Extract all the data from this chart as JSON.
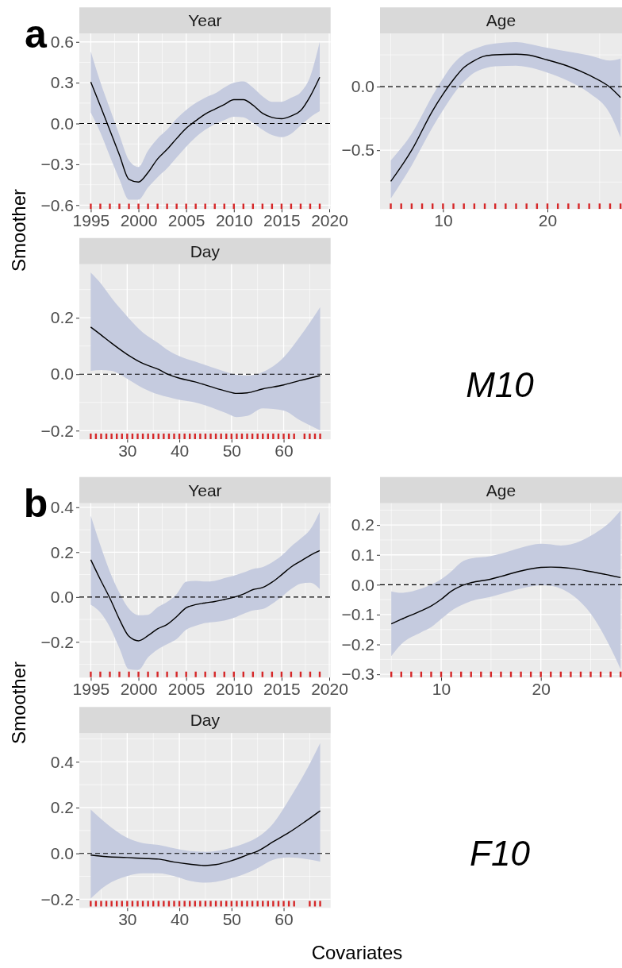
{
  "chart_data": [
    {
      "type": "line",
      "title": "Year",
      "ylabel": "Smoother",
      "annotations": [
        "a"
      ],
      "xlim": [
        1993.8,
        2020.14
      ],
      "ylim": [
        -0.629,
        0.661
      ],
      "xticks": [
        1995,
        2000,
        2005,
        2010,
        2015,
        2020
      ],
      "yticks": [
        {
          "value": -0.6,
          "label": "−0.6"
        },
        {
          "value": -0.3,
          "label": "−0.3"
        },
        {
          "value": 0,
          "label": "0.0"
        },
        {
          "value": 0.3,
          "label": "0.3"
        },
        {
          "value": 0.6,
          "label": "0.6"
        }
      ],
      "grid": true,
      "ref_lines": [
        {
          "axis": "y",
          "value": 0,
          "color": "#000000",
          "line_style": "dashed"
        }
      ],
      "series": [
        {
          "type": "line",
          "color": "#000000",
          "line_style": "solid",
          "x": [
            1995,
            1996,
            1997,
            1998,
            1999,
            2000,
            2001,
            2002,
            2003,
            2004,
            2005,
            2006,
            2007,
            2008,
            2009,
            2010,
            2011,
            2012,
            2013,
            2014,
            2015,
            2016,
            2017,
            2018,
            2019
          ],
          "values": [
            0.305,
            0.13,
            -0.05,
            -0.23,
            -0.41,
            -0.43,
            -0.36,
            -0.26,
            -0.19,
            -0.11,
            -0.035,
            0.02,
            0.07,
            0.105,
            0.14,
            0.175,
            0.175,
            0.135,
            0.075,
            0.045,
            0.035,
            0.055,
            0.095,
            0.2,
            0.34
          ],
          "upper": [
            0.53,
            0.305,
            0.11,
            -0.085,
            -0.27,
            -0.32,
            -0.2,
            -0.11,
            -0.045,
            0.035,
            0.1,
            0.15,
            0.19,
            0.22,
            0.265,
            0.3,
            0.31,
            0.265,
            0.2,
            0.16,
            0.16,
            0.19,
            0.23,
            0.345,
            0.6
          ],
          "lower": [
            0.08,
            -0.065,
            -0.24,
            -0.41,
            -0.56,
            -0.56,
            -0.47,
            -0.395,
            -0.33,
            -0.25,
            -0.17,
            -0.1,
            -0.045,
            -0.005,
            0.025,
            0.05,
            0.045,
            0.005,
            -0.045,
            -0.085,
            -0.1,
            -0.075,
            -0.015,
            0.045,
            0.09
          ]
        },
        {
          "type": "scatter",
          "color": "#d62728",
          "x": [
            1995,
            1996,
            1997,
            1998,
            1999,
            2000,
            2001,
            2002,
            2003,
            2004,
            2005,
            2006,
            2007,
            2008,
            2009,
            2010,
            2011,
            2012,
            2013,
            2014,
            2015,
            2016,
            2017,
            2018,
            2019
          ],
          "values": [
            -0.61,
            -0.61,
            -0.61,
            -0.61,
            -0.61,
            -0.61,
            -0.61,
            -0.61,
            -0.61,
            -0.61,
            -0.61,
            -0.61,
            -0.61,
            -0.61,
            -0.61,
            -0.61,
            -0.61,
            -0.61,
            -0.61,
            -0.61,
            -0.61,
            -0.61,
            -0.61,
            -0.61,
            -0.61
          ]
        }
      ]
    },
    {
      "type": "line",
      "title": "Age",
      "xlim": [
        3.97,
        27.14
      ],
      "ylim": [
        -0.9625,
        0.417
      ],
      "xticks": [
        10,
        20
      ],
      "yticks": [
        {
          "value": -0.5,
          "label": "−0.5"
        },
        {
          "value": 0,
          "label": "0.0"
        }
      ],
      "grid": true,
      "ref_lines": [
        {
          "axis": "y",
          "value": 0,
          "color": "#000000",
          "line_style": "dashed"
        }
      ],
      "series": [
        {
          "type": "line",
          "color": "#000000",
          "line_style": "solid",
          "x": [
            5,
            7,
            9,
            10,
            11,
            12,
            13,
            14,
            15,
            17,
            18,
            20,
            22,
            24,
            26,
            27
          ],
          "values": [
            -0.745,
            -0.5,
            -0.19,
            -0.06,
            0.055,
            0.15,
            0.205,
            0.24,
            0.25,
            0.255,
            0.25,
            0.21,
            0.16,
            0.09,
            -0.006,
            -0.085
          ],
          "upper": [
            -0.58,
            -0.37,
            -0.07,
            0.065,
            0.18,
            0.255,
            0.295,
            0.325,
            0.34,
            0.35,
            0.34,
            0.305,
            0.275,
            0.245,
            0.205,
            0.22
          ],
          "lower": [
            -0.88,
            -0.62,
            -0.32,
            -0.185,
            -0.06,
            0.04,
            0.11,
            0.145,
            0.16,
            0.165,
            0.155,
            0.11,
            0.045,
            -0.05,
            -0.215,
            -0.4
          ]
        },
        {
          "type": "scatter",
          "color": "#d62728",
          "x": [
            5,
            6,
            7,
            8,
            9,
            10,
            11,
            12,
            13,
            14,
            15,
            16,
            17,
            18,
            19,
            20,
            21,
            22,
            23,
            24,
            25,
            26,
            27
          ],
          "values": [
            -0.94,
            -0.94,
            -0.94,
            -0.94,
            -0.94,
            -0.94,
            -0.94,
            -0.94,
            -0.94,
            -0.94,
            -0.94,
            -0.94,
            -0.94,
            -0.94,
            -0.94,
            -0.94,
            -0.94,
            -0.94,
            -0.94,
            -0.94,
            -0.94,
            -0.94,
            -0.94
          ]
        }
      ]
    },
    {
      "type": "line",
      "title": "Day",
      "annotations": [
        "M10"
      ],
      "xlim": [
        20.82,
        69.0
      ],
      "ylim": [
        -0.231,
        0.39
      ],
      "xticks": [
        30,
        40,
        50,
        60
      ],
      "yticks": [
        {
          "value": -0.2,
          "label": "−0.2"
        },
        {
          "value": 0,
          "label": "0.0"
        },
        {
          "value": 0.2,
          "label": "0.2"
        }
      ],
      "grid": true,
      "ref_lines": [
        {
          "axis": "y",
          "value": 0,
          "color": "#000000",
          "line_style": "dashed"
        }
      ],
      "series": [
        {
          "type": "line",
          "color": "#000000",
          "line_style": "solid",
          "x": [
            23,
            25,
            27,
            30,
            33,
            36,
            38,
            40,
            43,
            46,
            49,
            51,
            53,
            56,
            60,
            63,
            67
          ],
          "values": [
            0.167,
            0.139,
            0.11,
            0.07,
            0.038,
            0.017,
            -0.002,
            -0.014,
            -0.027,
            -0.044,
            -0.06,
            -0.068,
            -0.066,
            -0.052,
            -0.038,
            -0.023,
            -0.005
          ],
          "upper": [
            0.36,
            0.32,
            0.27,
            0.205,
            0.148,
            0.11,
            0.083,
            0.064,
            0.045,
            0.026,
            0.008,
            -0.002,
            -0.005,
            0.008,
            0.06,
            0.13,
            0.238
          ],
          "lower": [
            0.012,
            0.015,
            0.012,
            -0.016,
            -0.049,
            -0.072,
            -0.082,
            -0.091,
            -0.1,
            -0.117,
            -0.138,
            -0.152,
            -0.148,
            -0.121,
            -0.129,
            -0.162,
            -0.199
          ]
        },
        {
          "type": "scatter",
          "color": "#d62728",
          "x": [
            23,
            24,
            25,
            26,
            27,
            28,
            29,
            30,
            31,
            32,
            33,
            34,
            35,
            36,
            37,
            38,
            39,
            40,
            41,
            42,
            43,
            44,
            45,
            46,
            47,
            48,
            49,
            50,
            51,
            52,
            53,
            54,
            55,
            56,
            57,
            58,
            59,
            60,
            61,
            62,
            64,
            65,
            66,
            67
          ],
          "values": [
            -0.22,
            -0.22,
            -0.22,
            -0.22,
            -0.22,
            -0.22,
            -0.22,
            -0.22,
            -0.22,
            -0.22,
            -0.22,
            -0.22,
            -0.22,
            -0.22,
            -0.22,
            -0.22,
            -0.22,
            -0.22,
            -0.22,
            -0.22,
            -0.22,
            -0.22,
            -0.22,
            -0.22,
            -0.22,
            -0.22,
            -0.22,
            -0.22,
            -0.22,
            -0.22,
            -0.22,
            -0.22,
            -0.22,
            -0.22,
            -0.22,
            -0.22,
            -0.22,
            -0.22,
            -0.22,
            -0.22,
            -0.22,
            -0.22,
            -0.22,
            -0.22
          ]
        }
      ]
    },
    {
      "type": "line",
      "title": "Year",
      "ylabel": "Smoother",
      "annotations": [
        "b"
      ],
      "xlim": [
        1993.8,
        2020.14
      ],
      "ylim": [
        -0.359,
        0.418
      ],
      "xticks": [
        1995,
        2000,
        2005,
        2010,
        2015,
        2020
      ],
      "yticks": [
        {
          "value": -0.2,
          "label": "−0.2"
        },
        {
          "value": 0,
          "label": "0.0"
        },
        {
          "value": 0.2,
          "label": "0.2"
        },
        {
          "value": 0.4,
          "label": "0.4"
        }
      ],
      "grid": true,
      "ref_lines": [
        {
          "axis": "y",
          "value": 0,
          "color": "#000000",
          "line_style": "dashed"
        }
      ],
      "series": [
        {
          "type": "line",
          "color": "#000000",
          "line_style": "solid",
          "x": [
            1995,
            1996,
            1997,
            1998,
            1999,
            2000,
            2001,
            2002,
            2003,
            2004,
            2005,
            2006,
            2007,
            2008,
            2009,
            2010,
            2011,
            2012,
            2013,
            2014,
            2015,
            2016,
            2017,
            2018,
            2019
          ],
          "values": [
            0.166,
            0.078,
            -0.005,
            -0.099,
            -0.175,
            -0.195,
            -0.172,
            -0.142,
            -0.122,
            -0.087,
            -0.048,
            -0.034,
            -0.026,
            -0.02,
            -0.011,
            -0.001,
            0.013,
            0.033,
            0.042,
            0.066,
            0.099,
            0.134,
            0.16,
            0.186,
            0.207
          ],
          "upper": [
            0.362,
            0.231,
            0.113,
            0.019,
            -0.052,
            -0.081,
            -0.079,
            -0.046,
            -0.022,
            0.013,
            0.068,
            0.072,
            0.069,
            0.072,
            0.084,
            0.095,
            0.109,
            0.125,
            0.133,
            0.154,
            0.184,
            0.225,
            0.26,
            0.301,
            0.38
          ],
          "lower": [
            -0.034,
            -0.069,
            -0.134,
            -0.228,
            -0.322,
            -0.325,
            -0.269,
            -0.234,
            -0.21,
            -0.187,
            -0.146,
            -0.128,
            -0.116,
            -0.111,
            -0.105,
            -0.093,
            -0.075,
            -0.06,
            -0.054,
            -0.031,
            0.001,
            0.036,
            0.06,
            0.064,
            0.036
          ]
        },
        {
          "type": "scatter",
          "color": "#d62728",
          "x": [
            1995,
            1996,
            1997,
            1998,
            1999,
            2000,
            2001,
            2002,
            2003,
            2004,
            2005,
            2006,
            2007,
            2008,
            2009,
            2010,
            2011,
            2012,
            2013,
            2014,
            2015,
            2016,
            2017,
            2018,
            2019
          ],
          "values": [
            -0.345,
            -0.345,
            -0.345,
            -0.345,
            -0.345,
            -0.345,
            -0.345,
            -0.345,
            -0.345,
            -0.345,
            -0.345,
            -0.345,
            -0.345,
            -0.345,
            -0.345,
            -0.345,
            -0.345,
            -0.345,
            -0.345,
            -0.345,
            -0.345,
            -0.345,
            -0.345,
            -0.345,
            -0.345
          ]
        }
      ]
    },
    {
      "type": "line",
      "title": "Age",
      "xlim": [
        3.87,
        28.14
      ],
      "ylim": [
        -0.311,
        0.273
      ],
      "xticks": [
        10,
        20
      ],
      "yticks": [
        {
          "value": -0.3,
          "label": "−0.3"
        },
        {
          "value": -0.2,
          "label": "−0.2"
        },
        {
          "value": -0.1,
          "label": "−0.1"
        },
        {
          "value": 0,
          "label": "0.0"
        },
        {
          "value": 0.1,
          "label": "0.1"
        },
        {
          "value": 0.2,
          "label": "0.2"
        }
      ],
      "grid": true,
      "ref_lines": [
        {
          "axis": "y",
          "value": 0,
          "color": "#000000",
          "line_style": "dashed"
        }
      ],
      "series": [
        {
          "type": "line",
          "color": "#000000",
          "line_style": "solid",
          "x": [
            5,
            6,
            8,
            9,
            10,
            11,
            12,
            13,
            15,
            16,
            18,
            20,
            21,
            22,
            23,
            25,
            27,
            28
          ],
          "values": [
            -0.131,
            -0.116,
            -0.087,
            -0.071,
            -0.049,
            -0.022,
            -0.004,
            0.007,
            0.019,
            0.028,
            0.046,
            0.058,
            0.059,
            0.058,
            0.055,
            0.044,
            0.031,
            0.024
          ],
          "upper": [
            -0.022,
            -0.027,
            -0.013,
            0,
            0.018,
            0.044,
            0.075,
            0.088,
            0.096,
            0.104,
            0.124,
            0.137,
            0.135,
            0.131,
            0.135,
            0.164,
            0.212,
            0.248
          ],
          "lower": [
            -0.239,
            -0.199,
            -0.159,
            -0.142,
            -0.115,
            -0.088,
            -0.069,
            -0.055,
            -0.04,
            -0.031,
            -0.013,
            -0.002,
            -0.004,
            -0.013,
            -0.031,
            -0.097,
            -0.212,
            -0.283
          ]
        },
        {
          "type": "scatter",
          "color": "#d62728",
          "x": [
            5,
            6,
            7,
            8,
            9,
            10,
            11,
            12,
            13,
            14,
            15,
            16,
            17,
            18,
            19,
            20,
            21,
            22,
            23,
            24,
            25,
            26,
            27,
            28
          ],
          "values": [
            -0.3,
            -0.3,
            -0.3,
            -0.3,
            -0.3,
            -0.3,
            -0.3,
            -0.3,
            -0.3,
            -0.3,
            -0.3,
            -0.3,
            -0.3,
            -0.3,
            -0.3,
            -0.3,
            -0.3,
            -0.3,
            -0.3,
            -0.3,
            -0.3,
            -0.3,
            -0.3,
            -0.3
          ]
        }
      ]
    },
    {
      "type": "line",
      "title": "Day",
      "xlabel": "Covariates",
      "annotations": [
        "F10"
      ],
      "xlim": [
        20.82,
        69.0
      ],
      "ylim": [
        -0.238,
        0.525
      ],
      "xticks": [
        30,
        40,
        50,
        60
      ],
      "yticks": [
        {
          "value": -0.2,
          "label": "−0.2"
        },
        {
          "value": 0,
          "label": "0.0"
        },
        {
          "value": 0.2,
          "label": "0.2"
        },
        {
          "value": 0.4,
          "label": "0.4"
        }
      ],
      "grid": true,
      "ref_lines": [
        {
          "axis": "y",
          "value": 0,
          "color": "#000000",
          "line_style": "dashed"
        }
      ],
      "series": [
        {
          "type": "line",
          "color": "#000000",
          "line_style": "solid",
          "x": [
            23,
            26,
            30,
            33,
            36,
            39,
            42,
            45,
            47,
            50,
            53,
            55,
            58,
            61,
            64,
            67
          ],
          "values": [
            -0.007,
            -0.014,
            -0.018,
            -0.022,
            -0.025,
            -0.038,
            -0.047,
            -0.053,
            -0.049,
            -0.032,
            -0.007,
            0.01,
            0.051,
            0.091,
            0.137,
            0.186
          ],
          "upper": [
            0.191,
            0.131,
            0.068,
            0.045,
            0.037,
            0.022,
            0.01,
            0.007,
            0.01,
            0.025,
            0.048,
            0.071,
            0.131,
            0.234,
            0.349,
            0.482
          ],
          "lower": [
            -0.197,
            -0.139,
            -0.099,
            -0.087,
            -0.087,
            -0.099,
            -0.12,
            -0.128,
            -0.124,
            -0.108,
            -0.085,
            -0.064,
            -0.028,
            -0.018,
            -0.024,
            -0.036
          ]
        },
        {
          "type": "scatter",
          "color": "#d62728",
          "x": [
            23,
            24,
            25,
            26,
            27,
            28,
            29,
            30,
            31,
            32,
            33,
            34,
            35,
            36,
            37,
            38,
            39,
            40,
            41,
            42,
            43,
            44,
            45,
            46,
            47,
            48,
            49,
            50,
            51,
            52,
            53,
            54,
            55,
            56,
            57,
            58,
            59,
            60,
            61,
            62,
            65,
            66,
            67
          ],
          "values": [
            -0.22,
            -0.22,
            -0.22,
            -0.22,
            -0.22,
            -0.22,
            -0.22,
            -0.22,
            -0.22,
            -0.22,
            -0.22,
            -0.22,
            -0.22,
            -0.22,
            -0.22,
            -0.22,
            -0.22,
            -0.22,
            -0.22,
            -0.22,
            -0.22,
            -0.22,
            -0.22,
            -0.22,
            -0.22,
            -0.22,
            -0.22,
            -0.22,
            -0.22,
            -0.22,
            -0.22,
            -0.22,
            -0.22,
            -0.22,
            -0.22,
            -0.22,
            -0.22,
            -0.22,
            -0.22,
            -0.22,
            -0.22,
            -0.22,
            -0.22
          ]
        }
      ]
    }
  ]
}
